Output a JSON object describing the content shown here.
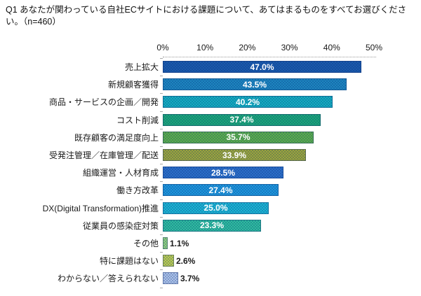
{
  "title": "Q1 あなたが関わっている自社ECサイトにおける課題について、あてはまるものをすべてお選びください。（n=460）",
  "chart_data": {
    "type": "bar",
    "orientation": "horizontal",
    "title": "Q1 あなたが関わっている自社ECサイトにおける課題について、あてはまるものをすべてお選びください。（n=460）",
    "sample_size_label": "n=460",
    "xlim": [
      0,
      50
    ],
    "x_ticks": [
      "0%",
      "10%",
      "20%",
      "30%",
      "40%",
      "50%"
    ],
    "grid": false,
    "legend": "none",
    "categories": [
      "売上拡大",
      "新規顧客獲得",
      "商品・サービスの企画／開発",
      "コスト削減",
      "既存顧客の満足度向上",
      "受発注管理／在庫管理／配送",
      "組織運営・人材育成",
      "働き方改革",
      "DX(Digital Transformation)推進",
      "従業員の感染症対策",
      "その他",
      "特に課題はない",
      "わからない／答えられない"
    ],
    "values": [
      47.0,
      43.5,
      40.2,
      37.4,
      35.7,
      33.9,
      28.5,
      27.4,
      25.0,
      23.3,
      1.1,
      2.6,
      3.7
    ],
    "value_labels": [
      "47.0%",
      "43.5%",
      "40.2%",
      "37.4%",
      "35.7%",
      "33.9%",
      "28.5%",
      "27.4%",
      "25.0%",
      "23.3%",
      "1.1%",
      "2.6%",
      "3.7%"
    ],
    "bar_colors": [
      "#1A5AAC",
      "#1D86BF",
      "#14AEC0",
      "#1CA878",
      "#5CAF4B",
      "#9CA63C",
      "#2B6FC8",
      "#1E97DC",
      "#1CB5D3",
      "#2EBD9E",
      "#8FD17E",
      "#BACD52",
      "#ABC2E8"
    ],
    "value_label_color_inside": "#ffffff",
    "value_label_color_outside": "#1a1a1a"
  }
}
